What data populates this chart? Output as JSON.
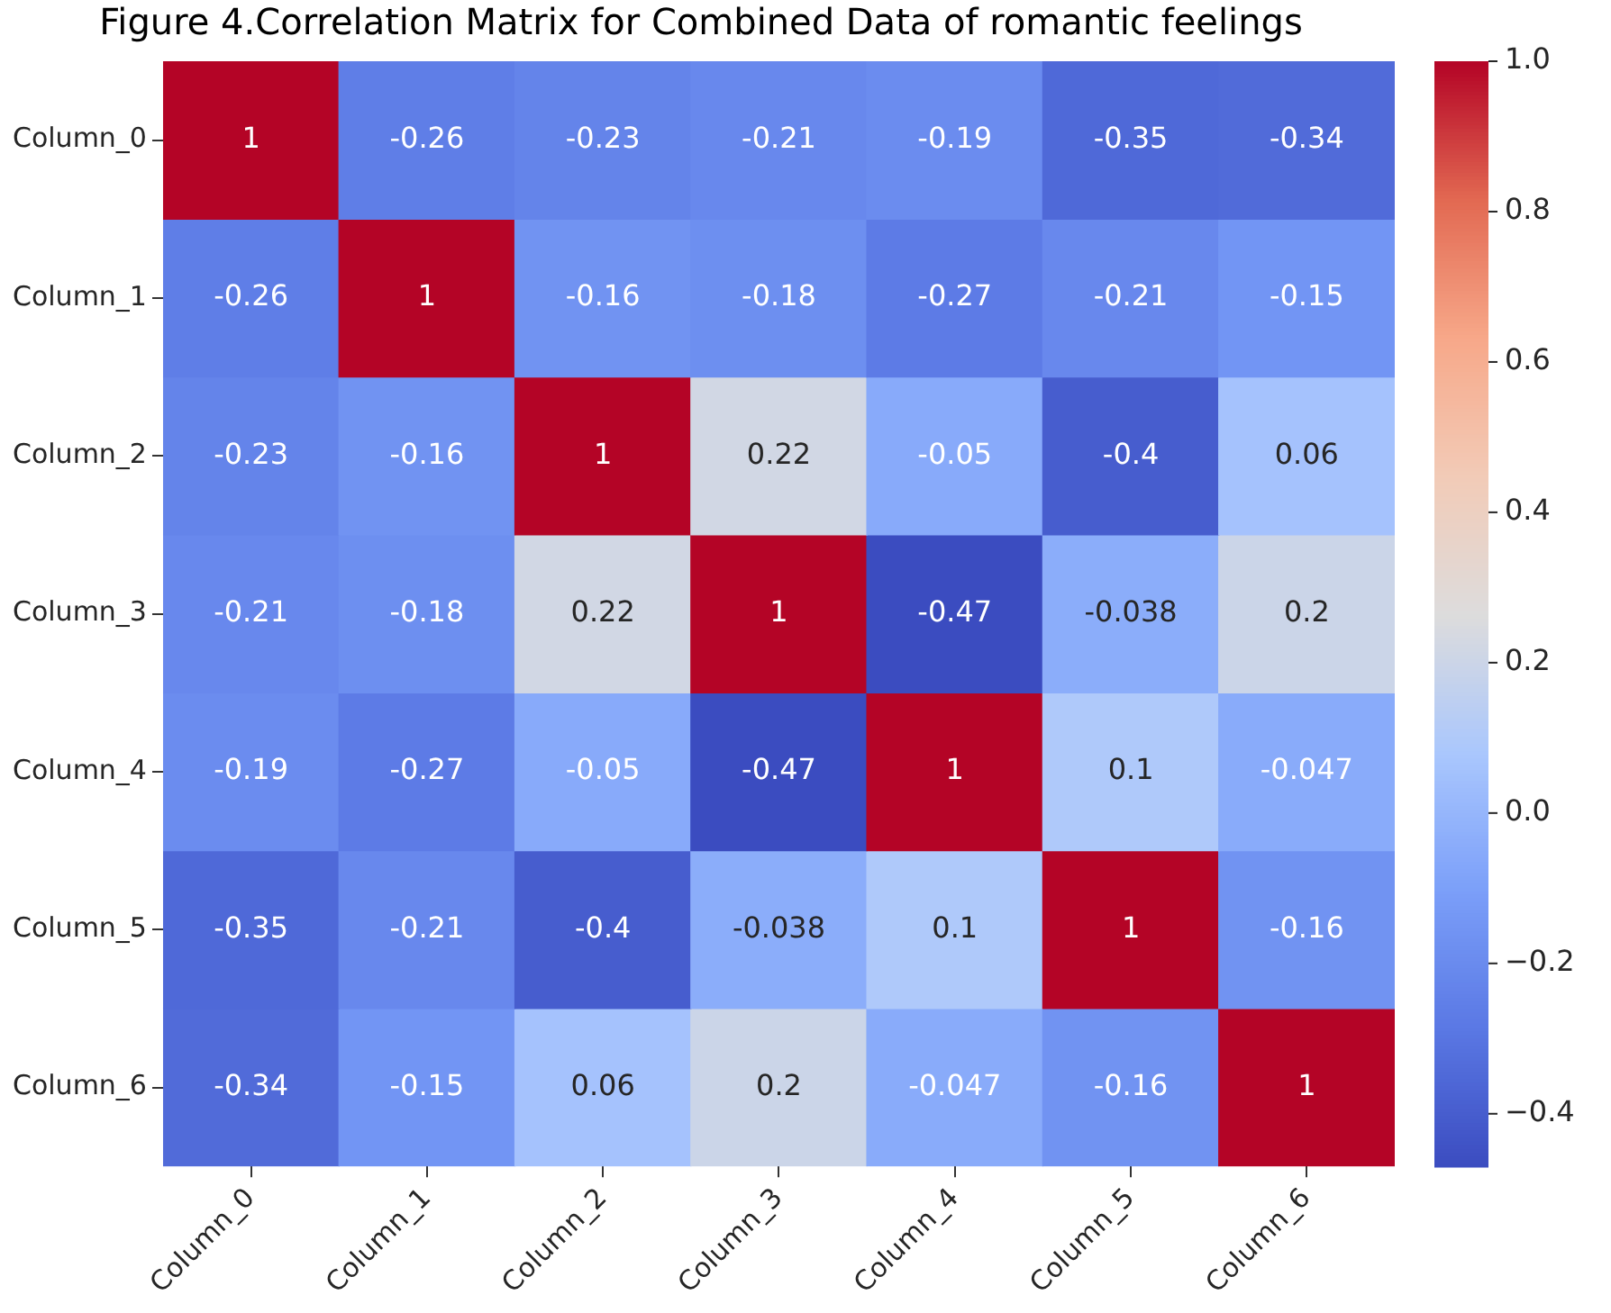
{
  "chart_data": {
    "type": "heatmap",
    "title": "Figure 4.Correlation Matrix for Combined Data of romantic feelings",
    "categories": [
      "Column_0",
      "Column_1",
      "Column_2",
      "Column_3",
      "Column_4",
      "Column_5",
      "Column_6"
    ],
    "y_categories": [
      "Column_0",
      "Column_1",
      "Column_2",
      "Column_3",
      "Column_4",
      "Column_5",
      "Column_6"
    ],
    "cells": [
      [
        1,
        -0.26,
        -0.23,
        -0.21,
        -0.19,
        -0.35,
        -0.34
      ],
      [
        -0.26,
        1,
        -0.16,
        -0.18,
        -0.27,
        -0.21,
        -0.15
      ],
      [
        -0.23,
        -0.16,
        1,
        0.22,
        -0.05,
        -0.4,
        0.06
      ],
      [
        -0.21,
        -0.18,
        0.22,
        1,
        -0.47,
        -0.038,
        0.2
      ],
      [
        -0.19,
        -0.27,
        -0.05,
        -0.47,
        1,
        0.1,
        -0.047
      ],
      [
        -0.35,
        -0.21,
        -0.4,
        -0.038,
        0.1,
        1,
        -0.16
      ],
      [
        -0.34,
        -0.15,
        0.06,
        0.2,
        -0.047,
        -0.16,
        1
      ]
    ],
    "data_labels": true,
    "clim": [
      -0.47,
      1
    ],
    "cticks": [
      {
        "value": -0.4,
        "label": "−0.4"
      },
      {
        "value": -0.2,
        "label": "−0.2"
      },
      {
        "value": 0,
        "label": "0.0"
      },
      0.2,
      0.4,
      0.6,
      0.8,
      {
        "value": 1,
        "label": "1.0"
      }
    ]
  }
}
